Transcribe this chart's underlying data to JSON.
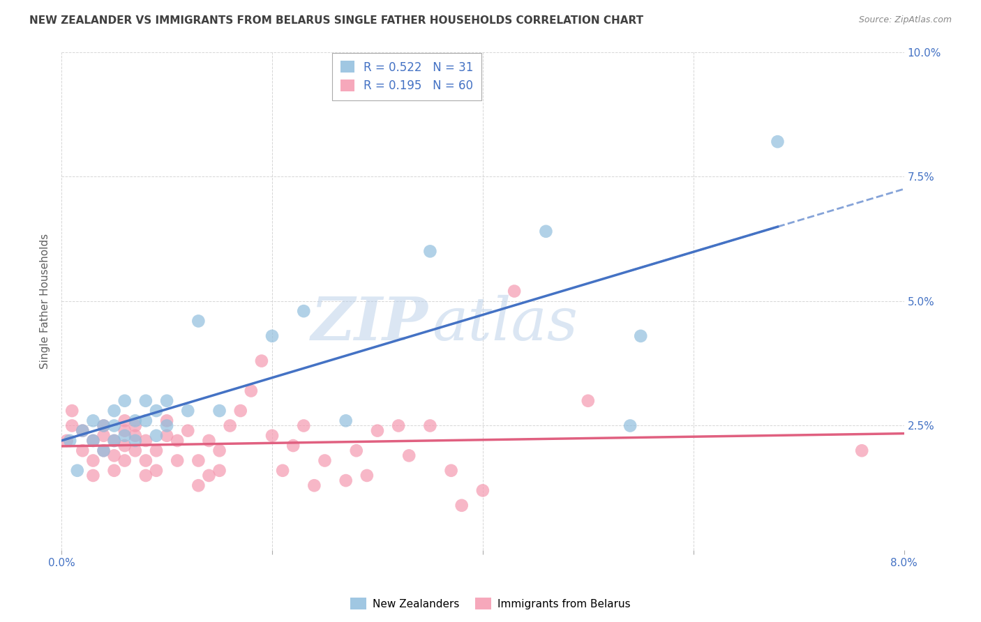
{
  "title": "NEW ZEALANDER VS IMMIGRANTS FROM BELARUS SINGLE FATHER HOUSEHOLDS CORRELATION CHART",
  "source": "Source: ZipAtlas.com",
  "ylabel": "Single Father Households",
  "xlim": [
    0.0,
    0.08
  ],
  "ylim": [
    0.0,
    0.1
  ],
  "x_ticks": [
    0.0,
    0.02,
    0.04,
    0.06,
    0.08
  ],
  "y_ticks": [
    0.0,
    0.025,
    0.05,
    0.075,
    0.1
  ],
  "nz_R": 0.522,
  "nz_N": 31,
  "bel_R": 0.195,
  "bel_N": 60,
  "nz_color": "#90bedd",
  "bel_color": "#f599b0",
  "nz_line_color": "#4472c4",
  "bel_line_color": "#e06080",
  "legend_label_nz": "New Zealanders",
  "legend_label_bel": "Immigrants from Belarus",
  "nz_x": [
    0.0008,
    0.0015,
    0.002,
    0.003,
    0.003,
    0.004,
    0.004,
    0.005,
    0.005,
    0.005,
    0.006,
    0.006,
    0.007,
    0.007,
    0.008,
    0.008,
    0.009,
    0.009,
    0.01,
    0.01,
    0.012,
    0.013,
    0.015,
    0.02,
    0.023,
    0.027,
    0.035,
    0.046,
    0.054,
    0.055,
    0.068
  ],
  "nz_y": [
    0.022,
    0.016,
    0.024,
    0.022,
    0.026,
    0.02,
    0.025,
    0.022,
    0.025,
    0.028,
    0.023,
    0.03,
    0.022,
    0.026,
    0.026,
    0.03,
    0.023,
    0.028,
    0.03,
    0.025,
    0.028,
    0.046,
    0.028,
    0.043,
    0.048,
    0.026,
    0.06,
    0.064,
    0.025,
    0.043,
    0.082
  ],
  "bel_x": [
    0.0005,
    0.001,
    0.001,
    0.002,
    0.002,
    0.003,
    0.003,
    0.003,
    0.004,
    0.004,
    0.004,
    0.005,
    0.005,
    0.005,
    0.006,
    0.006,
    0.006,
    0.006,
    0.007,
    0.007,
    0.007,
    0.008,
    0.008,
    0.008,
    0.009,
    0.009,
    0.01,
    0.01,
    0.011,
    0.011,
    0.012,
    0.013,
    0.013,
    0.014,
    0.014,
    0.015,
    0.015,
    0.016,
    0.017,
    0.018,
    0.019,
    0.02,
    0.021,
    0.022,
    0.023,
    0.024,
    0.025,
    0.027,
    0.028,
    0.029,
    0.03,
    0.032,
    0.033,
    0.035,
    0.037,
    0.038,
    0.04,
    0.043,
    0.05,
    0.076
  ],
  "bel_y": [
    0.022,
    0.025,
    0.028,
    0.02,
    0.024,
    0.015,
    0.018,
    0.022,
    0.023,
    0.02,
    0.025,
    0.016,
    0.019,
    0.022,
    0.018,
    0.021,
    0.024,
    0.026,
    0.02,
    0.023,
    0.025,
    0.015,
    0.018,
    0.022,
    0.016,
    0.02,
    0.023,
    0.026,
    0.018,
    0.022,
    0.024,
    0.013,
    0.018,
    0.015,
    0.022,
    0.016,
    0.02,
    0.025,
    0.028,
    0.032,
    0.038,
    0.023,
    0.016,
    0.021,
    0.025,
    0.013,
    0.018,
    0.014,
    0.02,
    0.015,
    0.024,
    0.025,
    0.019,
    0.025,
    0.016,
    0.009,
    0.012,
    0.052,
    0.03,
    0.02
  ],
  "watermark_zip": "ZIP",
  "watermark_atlas": "atlas",
  "background_color": "#ffffff",
  "grid_color": "#cccccc",
  "title_color": "#404040",
  "axis_label_color": "#606060",
  "tick_label_color": "#4472c4",
  "nz_line_solid_end": 0.068,
  "nz_line_dash_start": 0.054,
  "nz_line_dash_end": 0.08
}
